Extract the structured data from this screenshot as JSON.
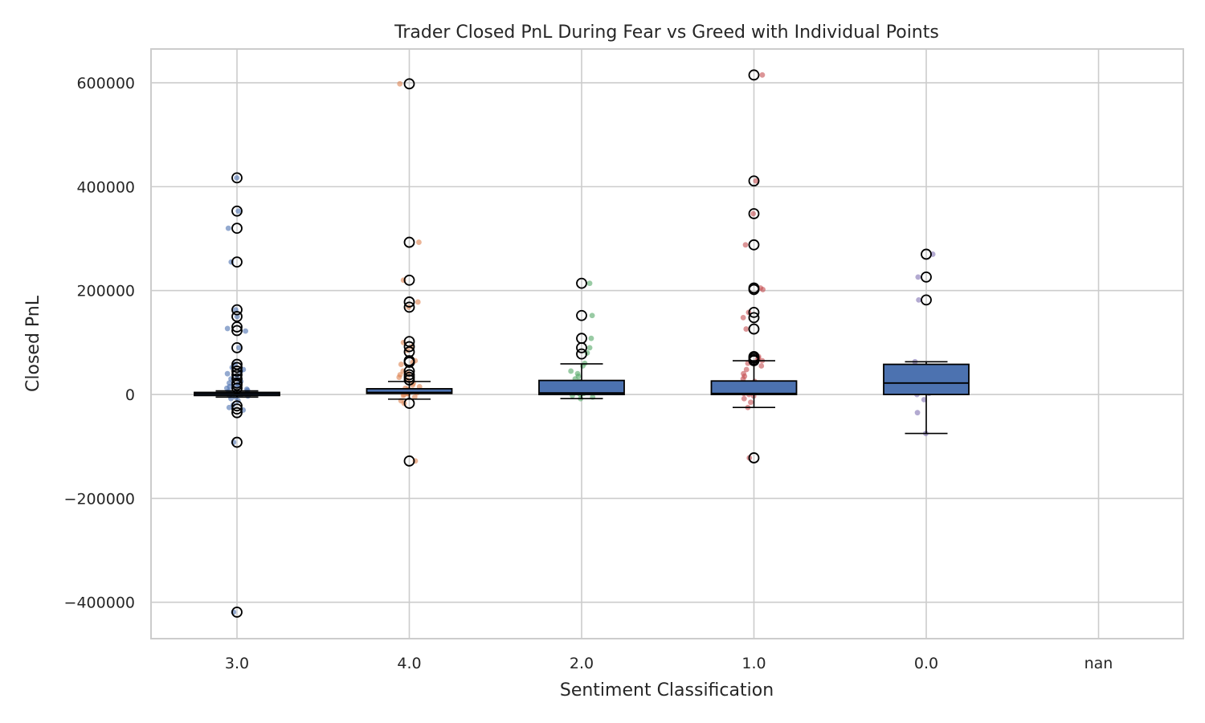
{
  "chart_data": {
    "type": "box",
    "title": "Trader Closed PnL During Fear vs Greed with Individual Points",
    "xlabel": "Sentiment Classification",
    "ylabel": "Closed PnL",
    "categories": [
      "3.0",
      "4.0",
      "2.0",
      "1.0",
      "0.0",
      "nan"
    ],
    "y_ticks": [
      -400000,
      -200000,
      0,
      200000,
      400000,
      600000
    ],
    "y_tick_labels": [
      "−400000",
      "−200000",
      "0",
      "200000",
      "400000",
      "600000"
    ],
    "ylim": [
      -470000,
      665000
    ],
    "grid": true,
    "colors": {
      "box_fill": "#4c72b0",
      "box_edge": "#000000",
      "grid": "#cccccc",
      "spine": "#cccccc",
      "points": [
        "#4c72b0",
        "#dd8452",
        "#55a868",
        "#c44e52",
        "#8172b3",
        "#937860"
      ]
    },
    "boxes": [
      {
        "category": "3.0",
        "q1": -2000,
        "median": 1000,
        "q3": 4000,
        "whisker_low": -5000,
        "whisker_high": 7000,
        "outliers": [
          417000,
          353000,
          320000,
          255000,
          163000,
          150000,
          130000,
          123000,
          90000,
          58000,
          52000,
          45000,
          38000,
          30000,
          22000,
          18000,
          12000,
          -22000,
          -28000,
          -35000,
          -92000,
          -419000
        ]
      },
      {
        "category": "4.0",
        "q1": 2000,
        "median": 4000,
        "q3": 11000,
        "whisker_low": -9000,
        "whisker_high": 25000,
        "outliers": [
          598000,
          293000,
          220000,
          178000,
          168000,
          102000,
          92000,
          82000,
          65000,
          62000,
          45000,
          38000,
          33000,
          28000,
          -17000,
          -128000
        ]
      },
      {
        "category": "2.0",
        "q1": 0,
        "median": 3000,
        "q3": 27000,
        "whisker_low": -8000,
        "whisker_high": 59000,
        "outliers": [
          214000,
          152000,
          108000,
          90000,
          78000
        ]
      },
      {
        "category": "1.0",
        "q1": 0,
        "median": 2000,
        "q3": 26000,
        "whisker_low": -25000,
        "whisker_high": 65000,
        "outliers": [
          615000,
          411000,
          348000,
          288000,
          205000,
          202000,
          158000,
          148000,
          126000,
          73000,
          70000,
          67000,
          65000,
          -122000
        ]
      },
      {
        "category": "0.0",
        "q1": 0,
        "median": 22000,
        "q3": 58000,
        "whisker_low": -75000,
        "whisker_high": 63000,
        "outliers": [
          270000,
          226000,
          182000
        ]
      }
    ],
    "points": [
      {
        "category": "3.0",
        "values": [
          417000,
          353000,
          320000,
          255000,
          163000,
          150000,
          127000,
          122000,
          90000,
          58000,
          52000,
          48000,
          45000,
          40000,
          35000,
          30000,
          25000,
          22000,
          20000,
          18000,
          15000,
          12000,
          10000,
          8000,
          6000,
          5000,
          4000,
          3000,
          2000,
          1000,
          0,
          -1000,
          -2000,
          -3000,
          -5000,
          -8000,
          -12000,
          -20000,
          -25000,
          -30000,
          -92000,
          -419000
        ]
      },
      {
        "category": "4.0",
        "values": [
          598000,
          293000,
          220000,
          178000,
          168000,
          100000,
          92000,
          85000,
          65000,
          62000,
          58000,
          45000,
          40000,
          38000,
          33000,
          28000,
          22000,
          18000,
          15000,
          12000,
          10000,
          8000,
          5000,
          3000,
          2000,
          1000,
          0,
          -2000,
          -5000,
          -12000,
          -17000,
          -128000
        ]
      },
      {
        "category": "2.0",
        "values": [
          214000,
          152000,
          108000,
          90000,
          80000,
          60000,
          55000,
          45000,
          40000,
          35000,
          30000,
          25000,
          20000,
          15000,
          10000,
          8000,
          5000,
          3000,
          2000,
          0,
          -2000,
          -5000,
          -8000
        ]
      },
      {
        "category": "1.0",
        "values": [
          615000,
          411000,
          348000,
          288000,
          205000,
          202000,
          158000,
          148000,
          126000,
          73000,
          70000,
          67000,
          65000,
          60000,
          55000,
          48000,
          40000,
          35000,
          30000,
          25000,
          20000,
          15000,
          10000,
          5000,
          2000,
          0,
          -3000,
          -8000,
          -15000,
          -25000,
          -122000
        ]
      },
      {
        "category": "0.0",
        "values": [
          270000,
          226000,
          182000,
          63000,
          2000,
          0,
          -10000,
          -35000,
          -75000
        ]
      }
    ]
  }
}
